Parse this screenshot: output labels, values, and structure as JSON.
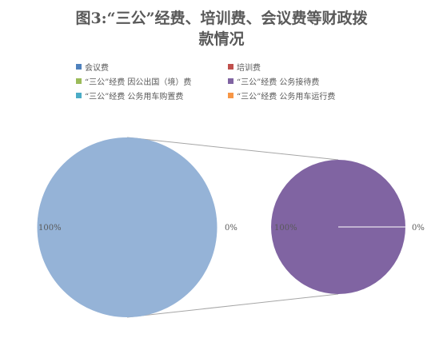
{
  "title": {
    "line1": "图3:“三公”经费、培训费、会议费等财政拨",
    "line2": "款情况"
  },
  "legend": [
    {
      "label": "会议费",
      "color": "#4F81BD"
    },
    {
      "label": "培训费",
      "color": "#C0504D"
    },
    {
      "label": "“三公”经费 因公出国（境）费",
      "color": "#9BBB59"
    },
    {
      "label": "“三公”经费 公务接待费",
      "color": "#8064A2"
    },
    {
      "label": "“三公”经费 公务用车购置费",
      "color": "#4BACC6"
    },
    {
      "label": "“三公”经费 公务用车运行费",
      "color": "#F79646"
    }
  ],
  "chart_data": {
    "type": "pie",
    "subtype": "pie-of-pie",
    "primary_pie": {
      "slices": [
        {
          "label": "100%",
          "value": 100,
          "color": "#95B3D7"
        },
        {
          "label": "0%",
          "value": 0
        }
      ]
    },
    "secondary_pie": {
      "slices": [
        {
          "label": "100%",
          "value": 100,
          "color": "#8064A2"
        },
        {
          "label": "0%",
          "value": 0
        }
      ]
    },
    "legend_position": "top"
  }
}
